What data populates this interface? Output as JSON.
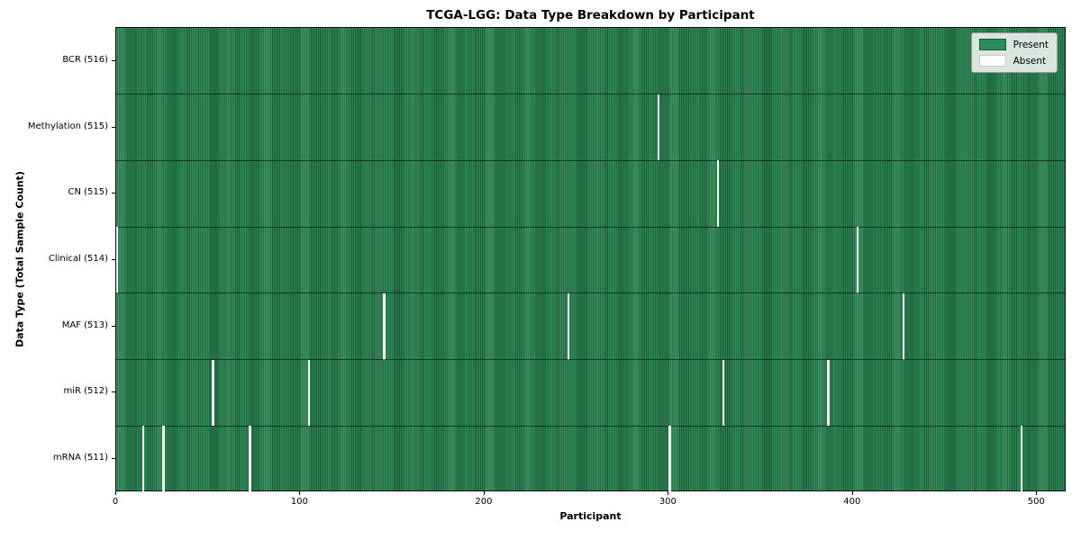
{
  "chart_data": {
    "type": "heatmap",
    "title": "TCGA-LGG: Data Type Breakdown by Participant",
    "xlabel": "Participant",
    "ylabel": "Data Type (Total Sample Count)",
    "n_participants": 516,
    "x_range": [
      0,
      516
    ],
    "x_ticks": [
      0,
      100,
      200,
      300,
      400,
      500
    ],
    "grid": false,
    "legend_position": "upper right",
    "legend": [
      {
        "label": "Present",
        "color": "#2e8b57"
      },
      {
        "label": "Absent",
        "color": "#ffffff"
      }
    ],
    "colors": {
      "present": "#2e8b57",
      "present_edge": "#1d5936",
      "absent": "#f2f2f2",
      "plot_border": "#101010"
    },
    "rows": [
      {
        "label": "BCR (516)",
        "data_type": "BCR",
        "present_count": 516,
        "absent_participants": []
      },
      {
        "label": "Methylation (515)",
        "data_type": "Methylation",
        "present_count": 515,
        "absent_participants": [
          294
        ]
      },
      {
        "label": "CN (515)",
        "data_type": "CN",
        "present_count": 515,
        "absent_participants": [
          326
        ]
      },
      {
        "label": "Clinical (514)",
        "data_type": "Clinical",
        "present_count": 514,
        "absent_participants": [
          0,
          402
        ]
      },
      {
        "label": "MAF (513)",
        "data_type": "MAF",
        "present_count": 513,
        "absent_participants": [
          145,
          245,
          427
        ]
      },
      {
        "label": "miR (512)",
        "data_type": "miR",
        "present_count": 512,
        "absent_participants": [
          52,
          104,
          329,
          386
        ]
      },
      {
        "label": "mRNA (511)",
        "data_type": "mRNA",
        "present_count": 511,
        "absent_participants": [
          14,
          25,
          72,
          300,
          491
        ]
      }
    ]
  }
}
